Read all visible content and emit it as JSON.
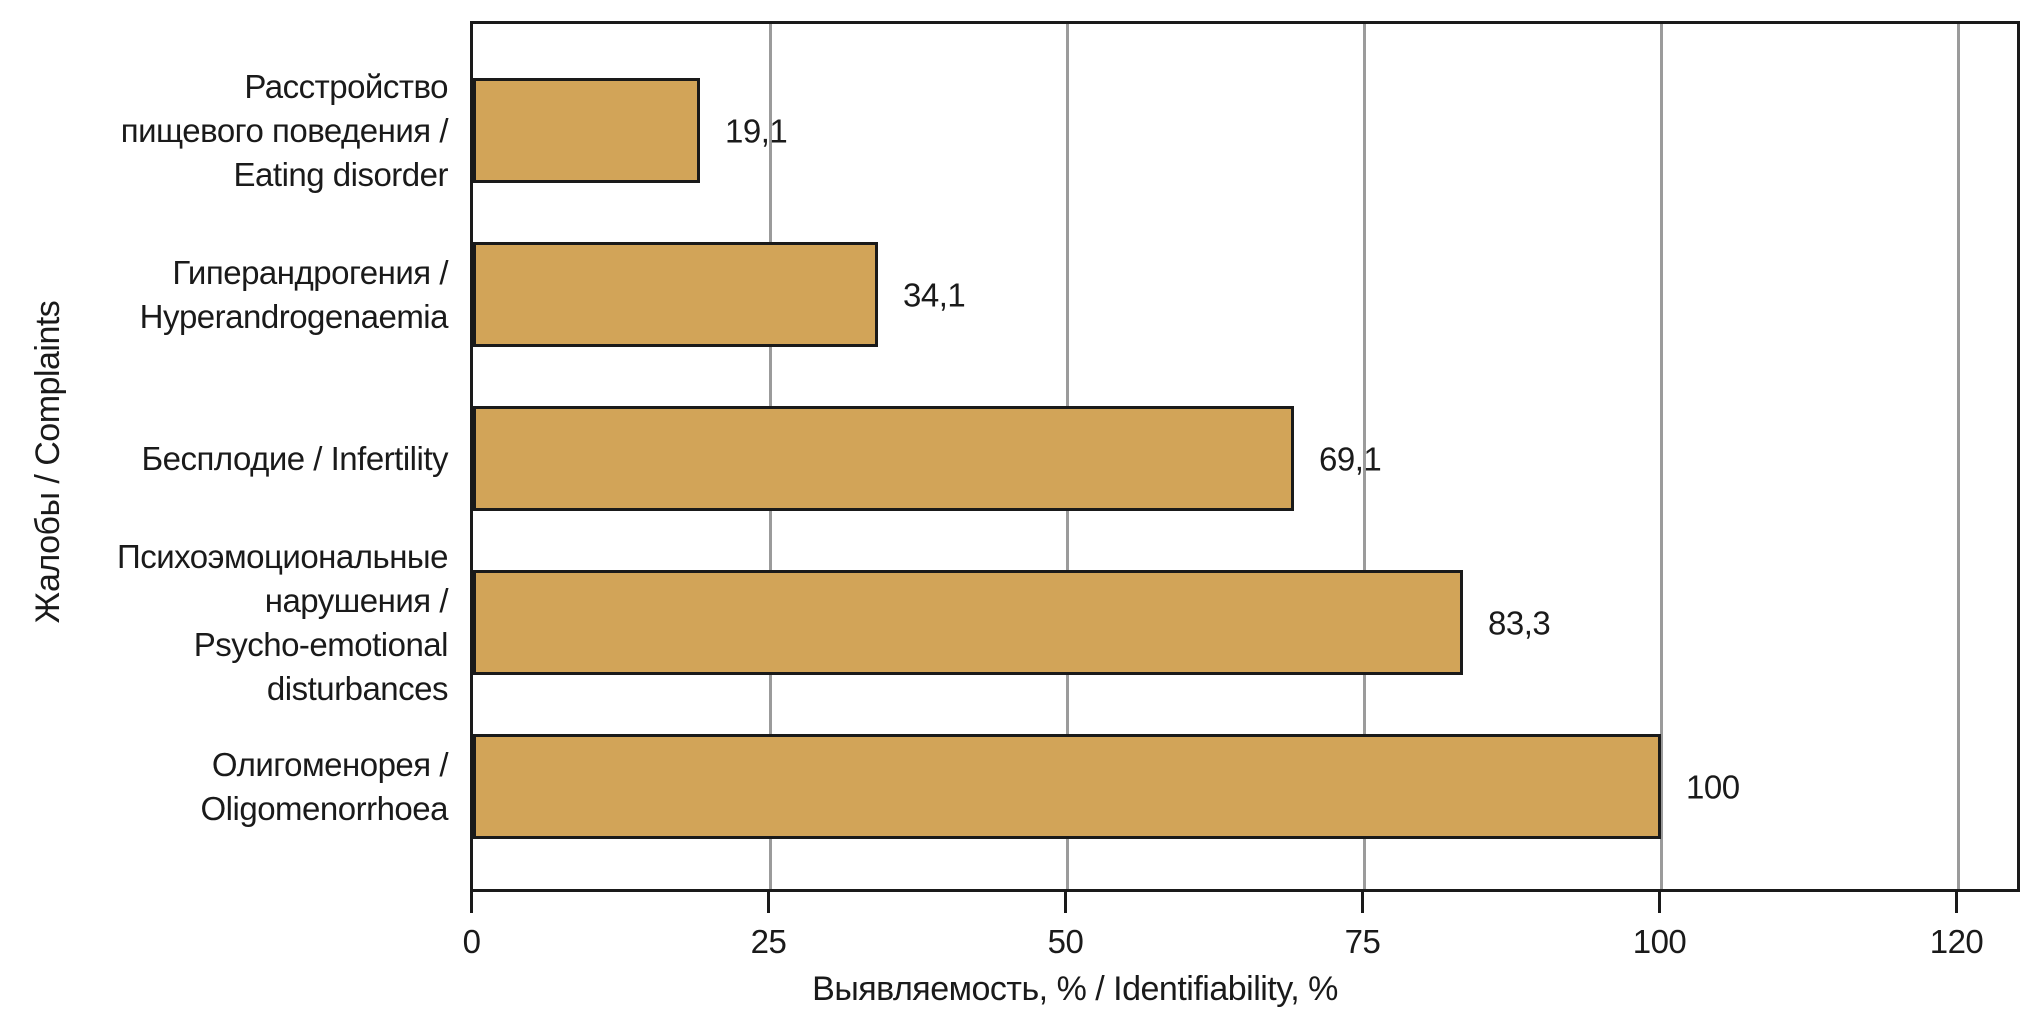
{
  "chart_data": {
    "type": "bar",
    "orientation": "horizontal",
    "title": "",
    "xlabel": "Выявляемость, % / Identifiability, %",
    "ylabel": "Жалобы / Complaints",
    "categories": [
      {
        "lines": [
          "Расстройство",
          "пищевого поведения /",
          "Eating disorder"
        ]
      },
      {
        "lines": [
          "Гиперандрогения /",
          "Hyperandrogenaemia"
        ]
      },
      {
        "lines": [
          "Бесплодие / Infertility"
        ]
      },
      {
        "lines": [
          "Психоэмоциональные",
          "нарушения /",
          "Psycho-emotional",
          "disturbances"
        ]
      },
      {
        "lines": [
          "Олигоменорея /",
          "Oligomenorrhoea"
        ]
      }
    ],
    "values": [
      19.1,
      34.1,
      69.1,
      83.3,
      100
    ],
    "value_labels": [
      "19,1",
      "34,1",
      "69,1",
      "83,3",
      "100"
    ],
    "xticks": [
      "0",
      "25",
      "50",
      "75",
      "100",
      "120"
    ],
    "xlim": [
      0,
      125
    ],
    "grid": "vertical",
    "legend": "none",
    "colors": {
      "bar_fill": "#D2A458",
      "bar_border": "#1A1A1A",
      "gridline": "#9B9B9B",
      "axis": "#1A1A1A",
      "text": "#1A1A1A",
      "background": "#FFFFFF"
    }
  }
}
